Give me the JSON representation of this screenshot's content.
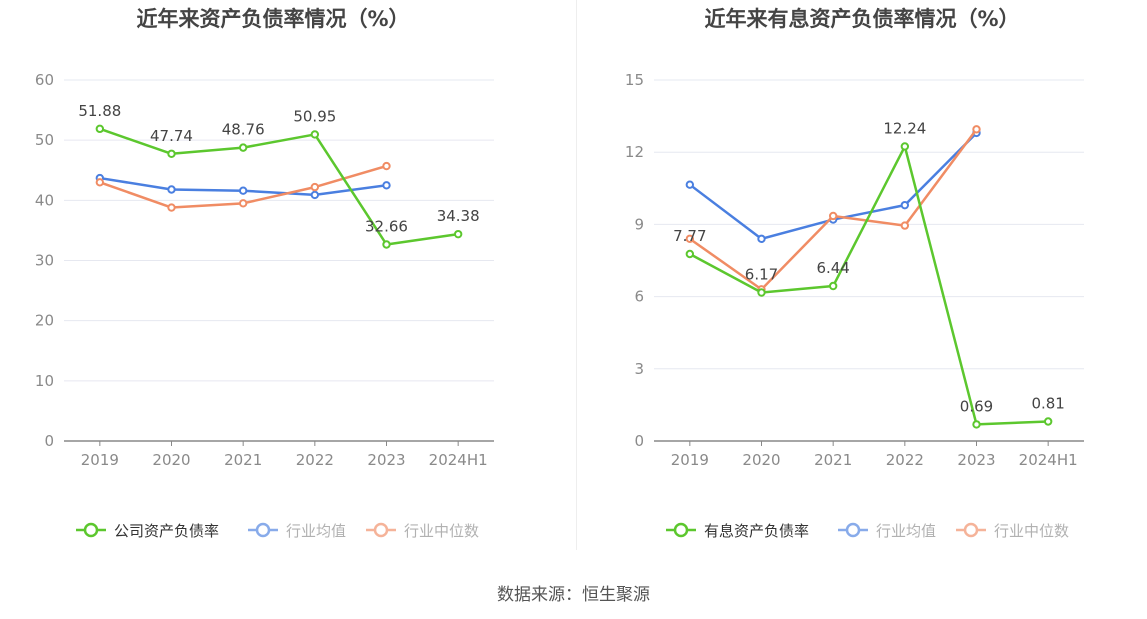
{
  "source_label": "数据来源：恒生聚源",
  "colors": {
    "company": "#5CC72E",
    "avg": "#4A7FE0",
    "median": "#F08C64",
    "grid": "#E6E8F0",
    "axis": "#888888",
    "tick_text": "#8A8A8A",
    "title_text": "#444444",
    "label_text": "#444444"
  },
  "chart_data": [
    {
      "type": "line",
      "title": "近年来资产负债率情况（%）",
      "categories": [
        "2019",
        "2020",
        "2021",
        "2022",
        "2023",
        "2024H1"
      ],
      "ylim": [
        0,
        60
      ],
      "yticks": [
        0,
        10,
        20,
        30,
        40,
        50,
        60
      ],
      "legend_position": "bottom-center",
      "series": [
        {
          "name": "公司资产负债率",
          "color_key": "company",
          "labeled": true,
          "values": [
            51.88,
            47.74,
            48.76,
            50.95,
            32.66,
            34.38
          ]
        },
        {
          "name": "行业均值",
          "color_key": "avg",
          "labeled": false,
          "values": [
            43.7,
            41.8,
            41.6,
            40.9,
            42.5,
            null
          ]
        },
        {
          "name": "行业中位数",
          "color_key": "median",
          "labeled": false,
          "values": [
            43.0,
            38.8,
            39.5,
            42.2,
            45.7,
            null
          ]
        }
      ]
    },
    {
      "type": "line",
      "title": "近年来有息资产负债率情况（%）",
      "categories": [
        "2019",
        "2020",
        "2021",
        "2022",
        "2023",
        "2024H1"
      ],
      "ylim": [
        0,
        15
      ],
      "yticks": [
        0,
        3,
        6,
        9,
        12,
        15
      ],
      "legend_position": "bottom-center",
      "series": [
        {
          "name": "有息资产负债率",
          "color_key": "company",
          "labeled": true,
          "values": [
            7.77,
            6.17,
            6.44,
            12.24,
            0.69,
            0.81
          ]
        },
        {
          "name": "行业均值",
          "color_key": "avg",
          "labeled": false,
          "values": [
            10.65,
            8.4,
            9.2,
            9.8,
            12.8,
            null
          ]
        },
        {
          "name": "行业中位数",
          "color_key": "median",
          "labeled": false,
          "values": [
            8.4,
            6.3,
            9.35,
            8.95,
            12.95,
            null
          ]
        }
      ]
    }
  ]
}
